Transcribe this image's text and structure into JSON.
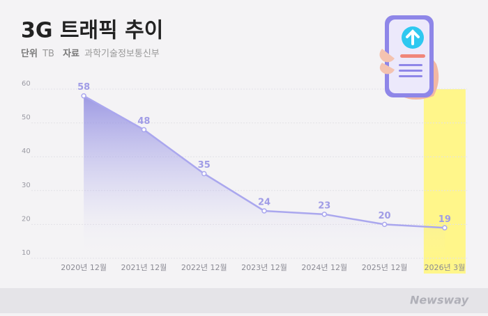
{
  "chart_data": {
    "type": "line",
    "title": "3G 트래픽 추이",
    "unit_label": "단위",
    "unit": "TB",
    "source_label": "자료",
    "source": "과학기술정보통신부",
    "watermark": "Newsway",
    "categories": [
      "2020년 12월",
      "2021년 12월",
      "2022년 12월",
      "2023년 12월",
      "2024년 12월",
      "2025년 12월",
      "2026년 3월"
    ],
    "values": [
      58,
      48,
      35,
      24,
      23,
      20,
      19
    ],
    "color": "#aaa7ee",
    "highlight_color": "#fff68a",
    "highlight_category": "2026년 3월",
    "ylim": [
      10,
      60
    ],
    "yticks": [
      10,
      20,
      30,
      40,
      50,
      60
    ],
    "grid": true
  }
}
